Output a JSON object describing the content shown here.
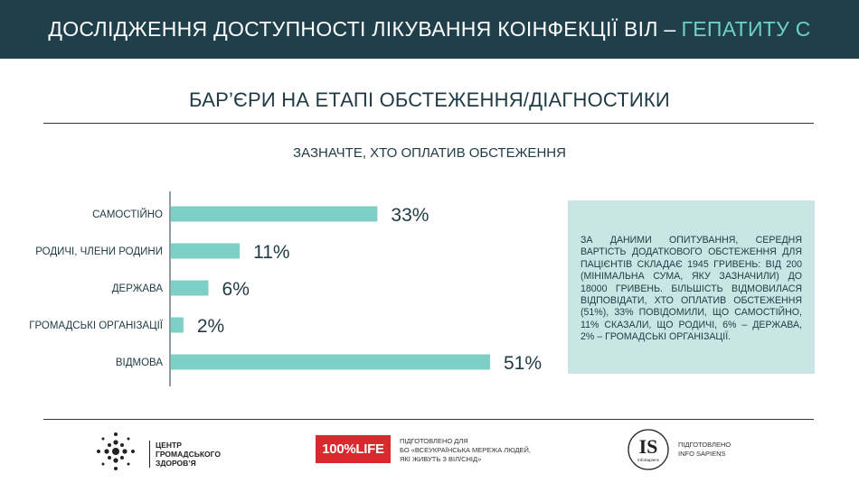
{
  "header": {
    "title_main": "ДОСЛІДЖЕННЯ ДОСТУПНОСТІ ЛІКУВАННЯ КОІНФЕКЦІЇ ВІЛ –",
    "title_accent": "ГЕПАТИТУ С"
  },
  "section_title": "БАР’ЄРИ НА ЕТАПІ ОБСТЕЖЕННЯ/ДІАГНОСТИКИ",
  "colors": {
    "bar": "#7ed0c6",
    "header_bg": "#1f3f4a",
    "accent": "#6fd1c4",
    "box_bg": "#c9e6e4"
  },
  "chart_data": {
    "type": "bar",
    "orientation": "horizontal",
    "title": "ЗАЗНАЧТЕ, ХТО ОПЛАТИВ ОБСТЕЖЕННЯ",
    "categories": [
      "САМОСТІЙНО",
      "РОДИЧІ, ЧЛЕНИ РОДИНИ",
      "ДЕРЖАВА",
      "ГРОМАДСЬКІ ОРГАНІЗАЦІЇ",
      "ВІДМОВА"
    ],
    "values": [
      33,
      11,
      6,
      2,
      51
    ],
    "value_labels": [
      "33%",
      "11%",
      "6%",
      "2%",
      "51%"
    ],
    "unit": "%",
    "xlim": [
      0,
      51
    ],
    "grid": false
  },
  "info_box": {
    "text": "ЗА ДАНИМИ ОПИТУВАННЯ, СЕРЕДНЯ ВАРТІСТЬ ДОДАТКОВОГО ОБСТЕЖЕННЯ ДЛЯ ПАЦІЄНТІВ СКЛАДАЄ 1945 ГРИВЕНЬ: ВІД 200 (МІНІМАЛЬНА СУМА, ЯКУ ЗАЗНАЧИЛИ) ДО 18000 ГРИВЕНЬ. БІЛЬШІСТЬ ВІДМОВИЛАСЯ ВІДПОВІДАТИ, ХТО ОПЛАТИВ ОБСТЕЖЕННЯ (51%), 33% ПОВІДОМИЛИ, ЩО САМОСТІЙНО, 11% СКАЗАЛИ, ЩО РОДИЧІ, 6% – ДЕРЖАВА,  2% – ГРОМАДСЬКІ ОРГАНІЗАЦІЇ."
  },
  "footer": {
    "cgz_lines": [
      "ЦЕНТР",
      "ГРОМАДСЬКОГО",
      "ЗДОРОВ’Я"
    ],
    "logo_100": "100%LIFE",
    "prepared1": [
      "ПІДГОТОВЛЕНО ДЛЯ",
      "БО «ВСЕУКРАЇНСЬКА МЕРЕЖА ЛЮДЕЙ,",
      "ЯКІ ЖИВУТЬ З ВІЛ/СНІД»"
    ],
    "is_logo": "IS",
    "is_sub": "InfoSapiens",
    "prepared2": [
      "ПІДГОТОВЛЕНО",
      "INFO SAPIENS"
    ],
    "icons": {
      "cgz": "dots-cross-logo-icon",
      "is": "info-sapiens-circle-logo-icon"
    }
  }
}
